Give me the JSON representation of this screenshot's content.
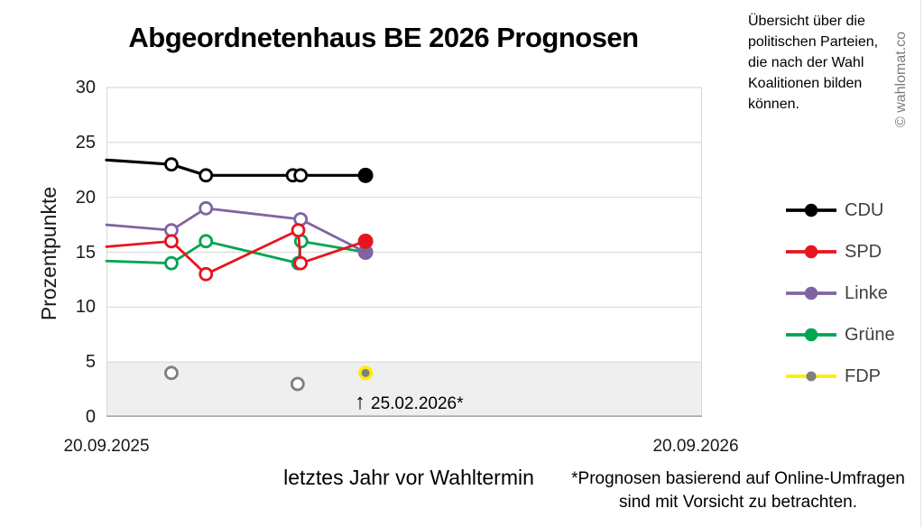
{
  "info_box": "Übersicht über die\npolitischen Parteien,\ndie nach der Wahl\nKoalitionen bilden\nkönnen.",
  "watermark": "© wahlomat.co",
  "footnote": "*Prognosen basierend auf Online-Umfragen\nsind mit Vorsicht zu betrachten.",
  "chart_data": {
    "type": "line",
    "title": "Abgeordnetenhaus BE 2026 Prognosen",
    "ylabel": "Prozentpunkte",
    "xlabel": "letztes Jahr vor Wahltermin",
    "ylim": [
      0,
      30
    ],
    "yticks": [
      30,
      25,
      20,
      15,
      10,
      5,
      0
    ],
    "xtick_labels": [
      "20.09.2025",
      "20.09.2026"
    ],
    "x_unit": "fraction of the year between 20.09.2025 and 20.09.2026",
    "grid": true,
    "grid_color": "#d9d9d9",
    "axis_color": "#a6a6a6",
    "shaded_band": {
      "ymin": 0,
      "ymax": 5,
      "color": "#efefef"
    },
    "legend_position": "right",
    "annotation": {
      "arrow": "↑",
      "text": "25.02.2026*"
    },
    "series": [
      {
        "name": "CDU",
        "color": "#000000",
        "points": [
          {
            "x": 0,
            "v": 23.4,
            "marker": "none"
          },
          {
            "x": 0.109,
            "v": 23,
            "marker": "open"
          },
          {
            "x": 0.167,
            "v": 22,
            "marker": "open"
          },
          {
            "x": 0.313,
            "v": 22,
            "marker": "open"
          },
          {
            "x": 0.326,
            "v": 22,
            "marker": "open"
          },
          {
            "x": 0.435,
            "v": 22,
            "marker": "filled"
          }
        ]
      },
      {
        "name": "SPD",
        "color": "#e8141e",
        "points": [
          {
            "x": 0,
            "v": 15.5,
            "marker": "none"
          },
          {
            "x": 0.109,
            "v": 16,
            "marker": "open"
          },
          {
            "x": 0.167,
            "v": 13,
            "marker": "open"
          },
          {
            "x": 0.322,
            "v": 17,
            "marker": "open"
          },
          {
            "x": 0.326,
            "v": 14,
            "marker": "open"
          },
          {
            "x": 0.435,
            "v": 16,
            "marker": "filled"
          }
        ]
      },
      {
        "name": "Linke",
        "color": "#8064a2",
        "points": [
          {
            "x": 0,
            "v": 17.5,
            "marker": "none"
          },
          {
            "x": 0.109,
            "v": 17,
            "marker": "open"
          },
          {
            "x": 0.167,
            "v": 19,
            "marker": "open"
          },
          {
            "x": 0.326,
            "v": 18,
            "marker": "open"
          },
          {
            "x": 0.435,
            "v": 15,
            "marker": "filled"
          }
        ]
      },
      {
        "name": "Grüne",
        "color": "#00a551",
        "points": [
          {
            "x": 0,
            "v": 14.2,
            "marker": "none"
          },
          {
            "x": 0.109,
            "v": 14,
            "marker": "open"
          },
          {
            "x": 0.167,
            "v": 16,
            "marker": "open"
          },
          {
            "x": 0.322,
            "v": 14,
            "marker": "open"
          },
          {
            "x": 0.327,
            "v": 16,
            "marker": "open"
          },
          {
            "x": 0.435,
            "v": 15,
            "marker": "none"
          }
        ]
      },
      {
        "name": "FDP",
        "color": "#ffed00",
        "marker_color": "#808080",
        "line": false,
        "points": [
          {
            "x": 0.109,
            "v": 4,
            "marker": "open"
          },
          {
            "x": 0.321,
            "v": 3,
            "marker": "open"
          },
          {
            "x": 0.435,
            "v": 4,
            "marker": "ring"
          }
        ]
      }
    ],
    "draw_order": [
      "Grüne",
      "Linke",
      "SPD",
      "CDU",
      "FDP"
    ]
  }
}
